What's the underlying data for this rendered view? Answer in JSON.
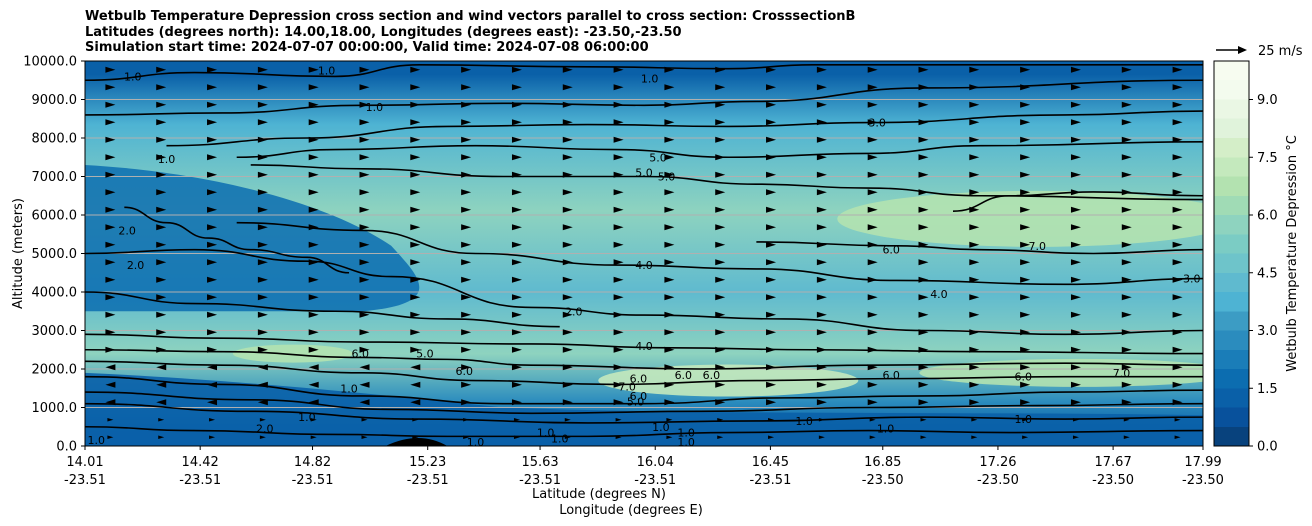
{
  "chart_data": {
    "type": "heatmap",
    "title_lines": [
      "Wetbulb Temperature Depression cross section and wind vectors parallel to cross section: CrosssectionB",
      "Latitudes (degrees north): 14.00,18.00, Longitudes (degrees east): -23.50,-23.50",
      "Simulation start time: 2024-07-07 00:00:00, Valid time: 2024-07-08 06:00:00"
    ],
    "ylabel": "Altitude (meters)",
    "xlabel_lat": "Latitude (degrees N)",
    "xlabel_lon": "Longitude (degrees E)",
    "ylim": [
      0,
      10000
    ],
    "y_ticks": [
      {
        "value": 0,
        "label": "0.0"
      },
      {
        "value": 1000,
        "label": "1000.0"
      },
      {
        "value": 2000,
        "label": "2000.0"
      },
      {
        "value": 3000,
        "label": "3000.0"
      },
      {
        "value": 4000,
        "label": "4000.0"
      },
      {
        "value": 5000,
        "label": "5000.0"
      },
      {
        "value": 6000,
        "label": "6000.0"
      },
      {
        "value": 7000,
        "label": "7000.0"
      },
      {
        "value": 8000,
        "label": "8000.0"
      },
      {
        "value": 9000,
        "label": "9000.0"
      },
      {
        "value": 10000,
        "label": "10000.0"
      }
    ],
    "xlim": [
      14.01,
      17.99
    ],
    "x_ticks": [
      {
        "lat": 14.01,
        "lat_label": "14.01",
        "lon_label": "-23.51"
      },
      {
        "lat": 14.42,
        "lat_label": "14.42",
        "lon_label": "-23.51"
      },
      {
        "lat": 14.82,
        "lat_label": "14.82",
        "lon_label": "-23.51"
      },
      {
        "lat": 15.23,
        "lat_label": "15.23",
        "lon_label": "-23.51"
      },
      {
        "lat": 15.63,
        "lat_label": "15.63",
        "lon_label": "-23.51"
      },
      {
        "lat": 16.04,
        "lat_label": "16.04",
        "lon_label": "-23.51"
      },
      {
        "lat": 16.45,
        "lat_label": "16.45",
        "lon_label": "-23.51"
      },
      {
        "lat": 16.85,
        "lat_label": "16.85",
        "lon_label": "-23.50"
      },
      {
        "lat": 17.26,
        "lat_label": "17.26",
        "lon_label": "-23.50"
      },
      {
        "lat": 17.67,
        "lat_label": "17.67",
        "lon_label": "-23.50"
      },
      {
        "lat": 17.99,
        "lat_label": "17.99",
        "lon_label": "-23.50"
      }
    ],
    "colorbar": {
      "label": "Wetbulb Temperature Depression °C",
      "range": [
        0,
        10
      ],
      "ticks": [
        {
          "value": 0,
          "label": "0.0"
        },
        {
          "value": 1.5,
          "label": "1.5"
        },
        {
          "value": 3.0,
          "label": "3.0"
        },
        {
          "value": 4.5,
          "label": "4.5"
        },
        {
          "value": 6.0,
          "label": "6.0"
        },
        {
          "value": 7.5,
          "label": "7.5"
        },
        {
          "value": 9.0,
          "label": "9.0"
        }
      ],
      "colors": [
        "#08427d",
        "#08519c",
        "#0a60a8",
        "#0c6db0",
        "#1a7db8",
        "#2b8cbe",
        "#3c9cc4",
        "#4eb3d3",
        "#5fbacf",
        "#6ec4ca",
        "#7bccc4",
        "#8ed3bf",
        "#a0dbb5",
        "#b3e2b0",
        "#c4e9bd",
        "#d4eec8",
        "#e0f3db",
        "#eaf7e4",
        "#f3fbee",
        "#f7fcf0"
      ]
    },
    "wind_reference": {
      "speed": 25,
      "label": "25 m/s"
    },
    "field_layers": [
      {
        "name": "layer-top",
        "alt_min": 9300,
        "alt_max": 10000,
        "value": 1.4
      },
      {
        "name": "layer-upper-dry",
        "alt_min": 7400,
        "alt_max": 9300,
        "value": 3.8
      },
      {
        "name": "layer-mid-dry",
        "alt_min": 4800,
        "alt_max": 7400,
        "value": 5.6
      },
      {
        "name": "layer-mid",
        "alt_min": 3200,
        "alt_max": 4800,
        "value": 4.3
      },
      {
        "name": "layer-inversion",
        "alt_min": 1600,
        "alt_max": 3200,
        "value": 5.8
      },
      {
        "name": "layer-boundary",
        "alt_min": 700,
        "alt_max": 1600,
        "value": 2.6
      },
      {
        "name": "layer-surface",
        "alt_min": 0,
        "alt_max": 700,
        "value": 1.0
      }
    ],
    "contour_labels": [
      {
        "label": "1.0",
        "lat": 14.18,
        "alt": 9600
      },
      {
        "label": "1.0",
        "lat": 14.87,
        "alt": 9750
      },
      {
        "label": "1.0",
        "lat": 15.04,
        "alt": 8800
      },
      {
        "label": "1.0",
        "lat": 16.02,
        "alt": 9550
      },
      {
        "label": "1.0",
        "lat": 14.3,
        "alt": 7450
      },
      {
        "label": "2.0",
        "lat": 14.16,
        "alt": 5600
      },
      {
        "label": "2.0",
        "lat": 14.19,
        "alt": 4700
      },
      {
        "label": "3.0",
        "lat": 16.83,
        "alt": 8400
      },
      {
        "label": "5.0",
        "lat": 16.05,
        "alt": 7500
      },
      {
        "label": "5.0",
        "lat": 16.0,
        "alt": 7100
      },
      {
        "label": "5.0",
        "lat": 16.08,
        "alt": 7000
      },
      {
        "label": "4.0",
        "lat": 16.0,
        "alt": 4700
      },
      {
        "label": "6.0",
        "lat": 16.88,
        "alt": 5100
      },
      {
        "label": "7.0",
        "lat": 17.4,
        "alt": 5200
      },
      {
        "label": "4.0",
        "lat": 17.05,
        "alt": 3950
      },
      {
        "label": "3.0",
        "lat": 17.95,
        "alt": 4350
      },
      {
        "label": "2.0",
        "lat": 15.75,
        "alt": 3500
      },
      {
        "label": "4.0",
        "lat": 16.0,
        "alt": 2600
      },
      {
        "label": "6.0",
        "lat": 14.99,
        "alt": 2400
      },
      {
        "label": "5.0",
        "lat": 15.22,
        "alt": 2400
      },
      {
        "label": "6.0",
        "lat": 15.36,
        "alt": 1950
      },
      {
        "label": "6.0",
        "lat": 15.98,
        "alt": 1750
      },
      {
        "label": "6.0",
        "lat": 16.14,
        "alt": 1850
      },
      {
        "label": "7.0",
        "lat": 15.94,
        "alt": 1550
      },
      {
        "label": "6.0",
        "lat": 15.98,
        "alt": 1300
      },
      {
        "label": "5.0",
        "lat": 15.97,
        "alt": 1150
      },
      {
        "label": "6.0",
        "lat": 16.24,
        "alt": 1850
      },
      {
        "label": "6.0",
        "lat": 16.88,
        "alt": 1850
      },
      {
        "label": "6.0",
        "lat": 17.35,
        "alt": 1800
      },
      {
        "label": "7.0",
        "lat": 17.7,
        "alt": 1900
      },
      {
        "label": "1.0",
        "lat": 14.95,
        "alt": 1500
      },
      {
        "label": "1.0",
        "lat": 14.8,
        "alt": 750
      },
      {
        "label": "2.0",
        "lat": 14.65,
        "alt": 450
      },
      {
        "label": "1.0",
        "lat": 14.05,
        "alt": 150
      },
      {
        "label": "1.0",
        "lat": 15.4,
        "alt": 100
      },
      {
        "label": "1.0",
        "lat": 15.65,
        "alt": 350
      },
      {
        "label": "1.0",
        "lat": 15.7,
        "alt": 200
      },
      {
        "label": "1.0",
        "lat": 16.06,
        "alt": 500
      },
      {
        "label": "1.0",
        "lat": 16.15,
        "alt": 350
      },
      {
        "label": "1.0",
        "lat": 16.15,
        "alt": 100
      },
      {
        "label": "1.0",
        "lat": 16.57,
        "alt": 650
      },
      {
        "label": "1.0",
        "lat": 16.86,
        "alt": 450
      },
      {
        "label": "1.0",
        "lat": 17.35,
        "alt": 700
      }
    ],
    "contour_lines": [
      {
        "name": "contour-1-upper",
        "points": [
          [
            14.01,
            9500
          ],
          [
            14.4,
            9700
          ],
          [
            14.9,
            9600
          ],
          [
            15.2,
            9900
          ],
          [
            15.8,
            9850
          ],
          [
            16.3,
            9800
          ],
          [
            16.6,
            9900
          ],
          [
            17.99,
            9900
          ]
        ]
      },
      {
        "name": "contour-3-upper",
        "points": [
          [
            14.01,
            8600
          ],
          [
            14.5,
            8650
          ],
          [
            15.0,
            8850
          ],
          [
            15.5,
            8900
          ],
          [
            16.0,
            8850
          ],
          [
            16.4,
            8950
          ],
          [
            17.0,
            9300
          ],
          [
            17.99,
            9500
          ]
        ]
      },
      {
        "name": "contour-4-upper",
        "points": [
          [
            14.3,
            7800
          ],
          [
            14.8,
            8000
          ],
          [
            15.3,
            8300
          ],
          [
            15.8,
            8350
          ],
          [
            16.3,
            8300
          ],
          [
            16.8,
            8400
          ],
          [
            17.5,
            8600
          ],
          [
            17.99,
            8700
          ]
        ]
      },
      {
        "name": "contour-5-upper",
        "points": [
          [
            14.55,
            7500
          ],
          [
            14.9,
            7700
          ],
          [
            15.4,
            7800
          ],
          [
            15.9,
            7700
          ],
          [
            16.3,
            7500
          ],
          [
            16.8,
            7600
          ],
          [
            17.2,
            7800
          ],
          [
            17.99,
            7900
          ]
        ]
      },
      {
        "name": "contour-5-lower",
        "points": [
          [
            14.6,
            7300
          ],
          [
            15.0,
            7200
          ],
          [
            15.5,
            7000
          ],
          [
            16.0,
            7000
          ],
          [
            16.4,
            6800
          ],
          [
            16.8,
            6700
          ],
          [
            17.2,
            6500
          ],
          [
            17.99,
            6400
          ]
        ]
      },
      {
        "name": "contour-6-core",
        "points": [
          [
            17.1,
            6100
          ],
          [
            17.3,
            6500
          ],
          [
            17.6,
            6600
          ],
          [
            17.99,
            6500
          ]
        ]
      },
      {
        "name": "contour-6-lower",
        "points": [
          [
            16.4,
            5300
          ],
          [
            16.9,
            5200
          ],
          [
            17.2,
            5100
          ],
          [
            17.6,
            5000
          ],
          [
            17.99,
            5100
          ]
        ]
      },
      {
        "name": "contour-4-mid",
        "points": [
          [
            14.55,
            5800
          ],
          [
            15.0,
            5600
          ],
          [
            15.4,
            5000
          ],
          [
            15.9,
            4700
          ],
          [
            16.4,
            4600
          ],
          [
            16.9,
            4300
          ],
          [
            17.5,
            4200
          ],
          [
            17.99,
            4350
          ]
        ]
      },
      {
        "name": "contour-2-mid",
        "points": [
          [
            14.01,
            5000
          ],
          [
            14.4,
            5100
          ],
          [
            14.8,
            4800
          ],
          [
            15.1,
            4400
          ],
          [
            15.6,
            3600
          ],
          [
            16.0,
            3400
          ],
          [
            16.5,
            3300
          ],
          [
            17.0,
            3000
          ],
          [
            17.5,
            2900
          ],
          [
            17.99,
            3000
          ]
        ]
      },
      {
        "name": "contour-2-left",
        "points": [
          [
            14.01,
            4000
          ],
          [
            14.4,
            3700
          ],
          [
            14.9,
            3500
          ],
          [
            15.3,
            3300
          ],
          [
            15.7,
            3100
          ]
        ]
      },
      {
        "name": "contour-1-left",
        "points": [
          [
            14.15,
            6200
          ],
          [
            14.3,
            5800
          ],
          [
            14.45,
            5400
          ],
          [
            14.6,
            5100
          ],
          [
            14.8,
            4900
          ],
          [
            14.95,
            4500
          ]
        ]
      },
      {
        "name": "contour-4-lower",
        "points": [
          [
            14.01,
            2900
          ],
          [
            14.5,
            2800
          ],
          [
            15.0,
            2700
          ],
          [
            15.6,
            2650
          ],
          [
            16.1,
            2550
          ],
          [
            16.6,
            2500
          ],
          [
            17.2,
            2450
          ],
          [
            17.99,
            2400
          ]
        ]
      },
      {
        "name": "contour-5-lower-band",
        "points": [
          [
            14.01,
            2500
          ],
          [
            14.5,
            2450
          ],
          [
            15.0,
            2300
          ],
          [
            15.3,
            2250
          ],
          [
            15.6,
            2100
          ],
          [
            16.2,
            2000
          ],
          [
            16.8,
            2100
          ],
          [
            17.5,
            2150
          ],
          [
            17.99,
            2100
          ]
        ]
      },
      {
        "name": "contour-6-lower-band",
        "points": [
          [
            14.01,
            2200
          ],
          [
            14.5,
            2100
          ],
          [
            15.0,
            1900
          ],
          [
            15.4,
            1700
          ],
          [
            15.9,
            1600
          ],
          [
            16.4,
            1700
          ],
          [
            16.9,
            1750
          ],
          [
            17.5,
            1800
          ],
          [
            17.99,
            1800
          ]
        ]
      },
      {
        "name": "contour-5-boundary",
        "points": [
          [
            14.01,
            1800
          ],
          [
            14.5,
            1600
          ],
          [
            15.0,
            1300
          ],
          [
            15.5,
            1100
          ],
          [
            16.0,
            1100
          ],
          [
            16.5,
            1250
          ],
          [
            17.0,
            1300
          ],
          [
            17.5,
            1400
          ],
          [
            17.99,
            1450
          ]
        ]
      },
      {
        "name": "contour-3-boundary",
        "points": [
          [
            14.01,
            1400
          ],
          [
            14.6,
            1200
          ],
          [
            15.1,
            950
          ],
          [
            15.6,
            850
          ],
          [
            16.2,
            900
          ],
          [
            16.8,
            1000
          ],
          [
            17.4,
            1050
          ],
          [
            17.99,
            1100
          ]
        ]
      },
      {
        "name": "contour-2-boundary",
        "points": [
          [
            14.01,
            1100
          ],
          [
            14.6,
            900
          ],
          [
            15.2,
            700
          ],
          [
            15.8,
            600
          ],
          [
            16.4,
            650
          ],
          [
            17.0,
            750
          ],
          [
            17.5,
            700
          ],
          [
            17.99,
            750
          ]
        ]
      },
      {
        "name": "contour-1-surface",
        "points": [
          [
            14.01,
            500
          ],
          [
            14.4,
            400
          ],
          [
            14.9,
            300
          ],
          [
            15.3,
            250
          ],
          [
            15.8,
            250
          ],
          [
            16.3,
            350
          ],
          [
            16.8,
            400
          ],
          [
            17.3,
            350
          ],
          [
            17.99,
            400
          ]
        ]
      }
    ]
  }
}
